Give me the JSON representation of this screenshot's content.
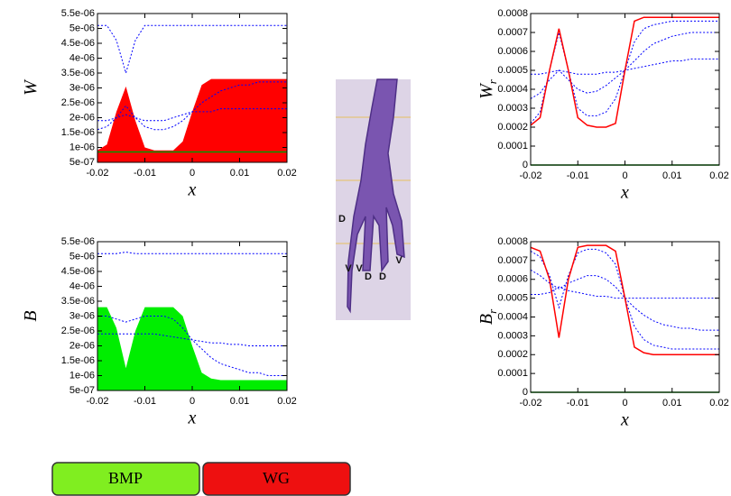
{
  "chart_data": [
    {
      "type": "line",
      "ylabel": "W",
      "xlabel": "x",
      "x": [
        -0.02,
        -0.018,
        -0.016,
        -0.014,
        -0.012,
        -0.01,
        -0.008,
        -0.006,
        -0.004,
        -0.002,
        0,
        0.002,
        0.004,
        0.006,
        0.008,
        0.01,
        0.012,
        0.014,
        0.016,
        0.018,
        0.02
      ],
      "xlim": [
        -0.02,
        0.02
      ],
      "xticks": [
        -0.02,
        -0.01,
        0,
        0.01,
        0.02
      ],
      "ylim": [
        5e-07,
        5.5e-06
      ],
      "yticks": [
        {
          "value": 5e-07,
          "label": "5e-07"
        },
        {
          "value": 1e-06,
          "label": "1e-06"
        },
        {
          "value": 1.5e-06,
          "label": "1.5e-06"
        },
        {
          "value": 2e-06,
          "label": "2e-06"
        },
        {
          "value": 2.5e-06,
          "label": "2.5e-06"
        },
        {
          "value": 3e-06,
          "label": "3e-06"
        },
        {
          "value": 3.5e-06,
          "label": "3.5e-06"
        },
        {
          "value": 4e-06,
          "label": "4e-06"
        },
        {
          "value": 4.5e-06,
          "label": "4.5e-06"
        },
        {
          "value": 5e-06,
          "label": "5e-06"
        },
        {
          "value": 5.5e-06,
          "label": "5.5e-06"
        }
      ],
      "series": [
        {
          "color": "#ff0000",
          "fill": true,
          "values": [
            9e-07,
            1.1e-06,
            2.2e-06,
            3.05e-06,
            1.9e-06,
            1e-06,
            9e-07,
            9e-07,
            9e-07,
            1.2e-06,
            2.2e-06,
            3.1e-06,
            3.3e-06,
            3.3e-06,
            3.3e-06,
            3.3e-06,
            3.3e-06,
            3.3e-06,
            3.3e-06,
            3.3e-06,
            3.3e-06
          ]
        },
        {
          "color": "#0000ff",
          "style": "dashed",
          "values": [
            5.1e-06,
            5.1e-06,
            4.6e-06,
            3.5e-06,
            4.6e-06,
            5.1e-06,
            5.1e-06,
            5.1e-06,
            5.1e-06,
            5.1e-06,
            5.1e-06,
            5.1e-06,
            5.1e-06,
            5.1e-06,
            5.1e-06,
            5.1e-06,
            5.1e-06,
            5.1e-06,
            5.1e-06,
            5.1e-06,
            5.1e-06
          ]
        },
        {
          "color": "#0000ff",
          "style": "dashed",
          "values": [
            1.6e-06,
            1.7e-06,
            2e-06,
            2.4e-06,
            2e-06,
            1.7e-06,
            1.6e-06,
            1.6e-06,
            1.7e-06,
            1.9e-06,
            2.2e-06,
            2.5e-06,
            2.7e-06,
            2.9e-06,
            3e-06,
            3.1e-06,
            3.1e-06,
            3.2e-06,
            3.2e-06,
            3.2e-06,
            3.2e-06
          ]
        },
        {
          "color": "#0000ff",
          "style": "dashed",
          "values": [
            1.9e-06,
            1.9e-06,
            2e-06,
            2.1e-06,
            2e-06,
            1.9e-06,
            1.9e-06,
            1.9e-06,
            2e-06,
            2.1e-06,
            2.2e-06,
            2.2e-06,
            2.2e-06,
            2.3e-06,
            2.3e-06,
            2.3e-06,
            2.3e-06,
            2.3e-06,
            2.3e-06,
            2.3e-06,
            2.3e-06
          ]
        },
        {
          "color": "#009900",
          "style": "solid",
          "values": [
            8.5e-07,
            8.5e-07,
            8.5e-07,
            8.5e-07,
            8.5e-07,
            8.5e-07,
            8.5e-07,
            8.5e-07,
            8.5e-07,
            8.5e-07,
            8.5e-07,
            8.5e-07,
            8.5e-07,
            8.5e-07,
            8.5e-07,
            8.5e-07,
            8.5e-07,
            8.5e-07,
            8.5e-07,
            8.5e-07,
            8.5e-07
          ]
        }
      ]
    },
    {
      "type": "line",
      "ylabel": "B",
      "xlabel": "x",
      "x": [
        -0.02,
        -0.018,
        -0.016,
        -0.014,
        -0.012,
        -0.01,
        -0.008,
        -0.006,
        -0.004,
        -0.002,
        0,
        0.002,
        0.004,
        0.006,
        0.008,
        0.01,
        0.012,
        0.014,
        0.016,
        0.018,
        0.02
      ],
      "xlim": [
        -0.02,
        0.02
      ],
      "xticks": [
        -0.02,
        -0.01,
        0,
        0.01,
        0.02
      ],
      "ylim": [
        5e-07,
        5.5e-06
      ],
      "yticks": [
        {
          "value": 5e-07,
          "label": "5e-07"
        },
        {
          "value": 1e-06,
          "label": "1e-06"
        },
        {
          "value": 1.5e-06,
          "label": "1.5e-06"
        },
        {
          "value": 2e-06,
          "label": "2e-06"
        },
        {
          "value": 2.5e-06,
          "label": "2.5e-06"
        },
        {
          "value": 3e-06,
          "label": "3e-06"
        },
        {
          "value": 3.5e-06,
          "label": "3.5e-06"
        },
        {
          "value": 4e-06,
          "label": "4e-06"
        },
        {
          "value": 4.5e-06,
          "label": "4.5e-06"
        },
        {
          "value": 5e-06,
          "label": "5e-06"
        },
        {
          "value": 5.5e-06,
          "label": "5.5e-06"
        }
      ],
      "series": [
        {
          "color": "#00ee00",
          "fill": true,
          "values": [
            3.3e-06,
            3.3e-06,
            2.6e-06,
            1.25e-06,
            2.5e-06,
            3.3e-06,
            3.3e-06,
            3.3e-06,
            3.3e-06,
            3e-06,
            2e-06,
            1.1e-06,
            9e-07,
            8.5e-07,
            8.5e-07,
            8.5e-07,
            8.5e-07,
            8.5e-07,
            8.5e-07,
            8.5e-07,
            8.5e-07
          ]
        },
        {
          "color": "#0000ff",
          "style": "dashed",
          "values": [
            5.1e-06,
            5.1e-06,
            5.1e-06,
            5.15e-06,
            5.1e-06,
            5.1e-06,
            5.1e-06,
            5.1e-06,
            5.1e-06,
            5.1e-06,
            5.1e-06,
            5.1e-06,
            5.1e-06,
            5.1e-06,
            5.1e-06,
            5.1e-06,
            5.1e-06,
            5.1e-06,
            5.1e-06,
            5.1e-06,
            5.1e-06
          ]
        },
        {
          "color": "#0000ff",
          "style": "dashed",
          "values": [
            3e-06,
            3e-06,
            2.9e-06,
            2.8e-06,
            2.9e-06,
            3e-06,
            3e-06,
            3e-06,
            2.9e-06,
            2.6e-06,
            2.2e-06,
            1.9e-06,
            1.6e-06,
            1.4e-06,
            1.3e-06,
            1.2e-06,
            1.1e-06,
            1.1e-06,
            1e-06,
            1e-06,
            1e-06
          ]
        },
        {
          "color": "#0000ff",
          "style": "dashed",
          "values": [
            2.4e-06,
            2.4e-06,
            2.4e-06,
            2.4e-06,
            2.4e-06,
            2.4e-06,
            2.4e-06,
            2.35e-06,
            2.3e-06,
            2.25e-06,
            2.2e-06,
            2.15e-06,
            2.1e-06,
            2.1e-06,
            2.05e-06,
            2.05e-06,
            2e-06,
            2e-06,
            2e-06,
            2e-06,
            2e-06
          ]
        }
      ]
    },
    {
      "type": "line",
      "ylabel": "W",
      "ylabel_subscript": "r",
      "xlabel": "x",
      "x": [
        -0.02,
        -0.018,
        -0.016,
        -0.014,
        -0.012,
        -0.01,
        -0.008,
        -0.006,
        -0.004,
        -0.002,
        0,
        0.002,
        0.004,
        0.006,
        0.008,
        0.01,
        0.012,
        0.014,
        0.016,
        0.018,
        0.02
      ],
      "xlim": [
        -0.02,
        0.02
      ],
      "xticks": [
        -0.02,
        -0.01,
        0,
        0.01,
        0.02
      ],
      "ylim": [
        0,
        0.0008
      ],
      "yticks": [
        0,
        0.0001,
        0.0002,
        0.0003,
        0.0004,
        0.0005,
        0.0006,
        0.0007,
        0.0008
      ],
      "series": [
        {
          "color": "#0000ff",
          "style": "dashed",
          "values": [
            0.00022,
            0.00028,
            0.0005,
            0.0007,
            0.0005,
            0.0003,
            0.00026,
            0.00026,
            0.00028,
            0.00035,
            0.0005,
            0.00065,
            0.00072,
            0.00074,
            0.00075,
            0.00076,
            0.00076,
            0.00076,
            0.00076,
            0.00076,
            0.00076
          ]
        },
        {
          "color": "#0000ff",
          "style": "dashed",
          "values": [
            0.00048,
            0.00048,
            0.00049,
            0.0005,
            0.00049,
            0.00048,
            0.00048,
            0.00048,
            0.00049,
            0.00049,
            0.0005,
            0.00051,
            0.00052,
            0.00053,
            0.00054,
            0.00055,
            0.00055,
            0.00056,
            0.00056,
            0.00056,
            0.00056
          ]
        },
        {
          "color": "#0000ff",
          "style": "dashed",
          "values": [
            0.00035,
            0.00038,
            0.00045,
            0.0005,
            0.00045,
            0.0004,
            0.00038,
            0.00039,
            0.00042,
            0.00046,
            0.0005,
            0.00055,
            0.0006,
            0.00064,
            0.00066,
            0.00068,
            0.00069,
            0.0007,
            0.0007,
            0.0007,
            0.0007
          ]
        },
        {
          "color": "#ff0000",
          "style": "solid",
          "values": [
            0.00021,
            0.00025,
            0.0005,
            0.00072,
            0.0005,
            0.00025,
            0.00021,
            0.0002,
            0.0002,
            0.00022,
            0.0005,
            0.00076,
            0.00078,
            0.00078,
            0.00078,
            0.00078,
            0.00078,
            0.00078,
            0.00078,
            0.00078,
            0.00078
          ]
        },
        {
          "color": "#009900",
          "style": "solid",
          "values": [
            0,
            0,
            0,
            0,
            0,
            0,
            0,
            0,
            0,
            0,
            0,
            0,
            0,
            0,
            0,
            0,
            0,
            0,
            0,
            0,
            0
          ]
        }
      ]
    },
    {
      "type": "line",
      "ylabel": "B",
      "ylabel_subscript": "r",
      "xlabel": "x",
      "x": [
        -0.02,
        -0.018,
        -0.016,
        -0.014,
        -0.012,
        -0.01,
        -0.008,
        -0.006,
        -0.004,
        -0.002,
        0,
        0.002,
        0.004,
        0.006,
        0.008,
        0.01,
        0.012,
        0.014,
        0.016,
        0.018,
        0.02
      ],
      "xlim": [
        -0.02,
        0.02
      ],
      "xticks": [
        -0.02,
        -0.01,
        0,
        0.01,
        0.02
      ],
      "ylim": [
        0,
        0.0008
      ],
      "yticks": [
        0,
        0.0001,
        0.0002,
        0.0003,
        0.0004,
        0.0005,
        0.0006,
        0.0007,
        0.0008
      ],
      "series": [
        {
          "color": "#0000ff",
          "style": "dashed",
          "values": [
            0.00075,
            0.00072,
            0.00062,
            0.00045,
            0.00062,
            0.00074,
            0.00076,
            0.00076,
            0.00074,
            0.00068,
            0.0005,
            0.00035,
            0.00028,
            0.00025,
            0.00024,
            0.00023,
            0.00023,
            0.00023,
            0.00023,
            0.00023,
            0.00023
          ]
        },
        {
          "color": "#0000ff",
          "style": "dashed",
          "values": [
            0.00065,
            0.00062,
            0.00058,
            0.00055,
            0.00058,
            0.0006,
            0.00062,
            0.00062,
            0.0006,
            0.00056,
            0.0005,
            0.00045,
            0.00041,
            0.00038,
            0.00036,
            0.00035,
            0.00034,
            0.00034,
            0.00033,
            0.00033,
            0.00033
          ]
        },
        {
          "color": "#0000ff",
          "style": "dashed",
          "values": [
            0.00052,
            0.00052,
            0.00053,
            0.00056,
            0.00054,
            0.00053,
            0.00052,
            0.00051,
            0.00051,
            0.0005,
            0.0005,
            0.0005,
            0.0005,
            0.0005,
            0.0005,
            0.0005,
            0.0005,
            0.0005,
            0.0005,
            0.0005,
            0.0005
          ]
        },
        {
          "color": "#ff0000",
          "style": "solid",
          "values": [
            0.00077,
            0.00075,
            0.0006,
            0.00029,
            0.0006,
            0.00077,
            0.00078,
            0.00078,
            0.00078,
            0.00075,
            0.0005,
            0.00024,
            0.00021,
            0.0002,
            0.0002,
            0.0002,
            0.0002,
            0.0002,
            0.0002,
            0.0002,
            0.0002
          ]
        },
        {
          "color": "#009900",
          "style": "solid",
          "values": [
            0,
            0,
            0,
            0,
            0,
            0,
            0,
            0,
            0,
            0,
            0,
            0,
            0,
            0,
            0,
            0,
            0,
            0,
            0,
            0,
            0
          ]
        }
      ]
    }
  ],
  "image_labels": [
    "D",
    "V",
    "V",
    "D",
    "D",
    "V"
  ],
  "legend": [
    {
      "label": "BMP",
      "color": "#80ee20"
    },
    {
      "label": "WG",
      "color": "#ee1010"
    }
  ]
}
